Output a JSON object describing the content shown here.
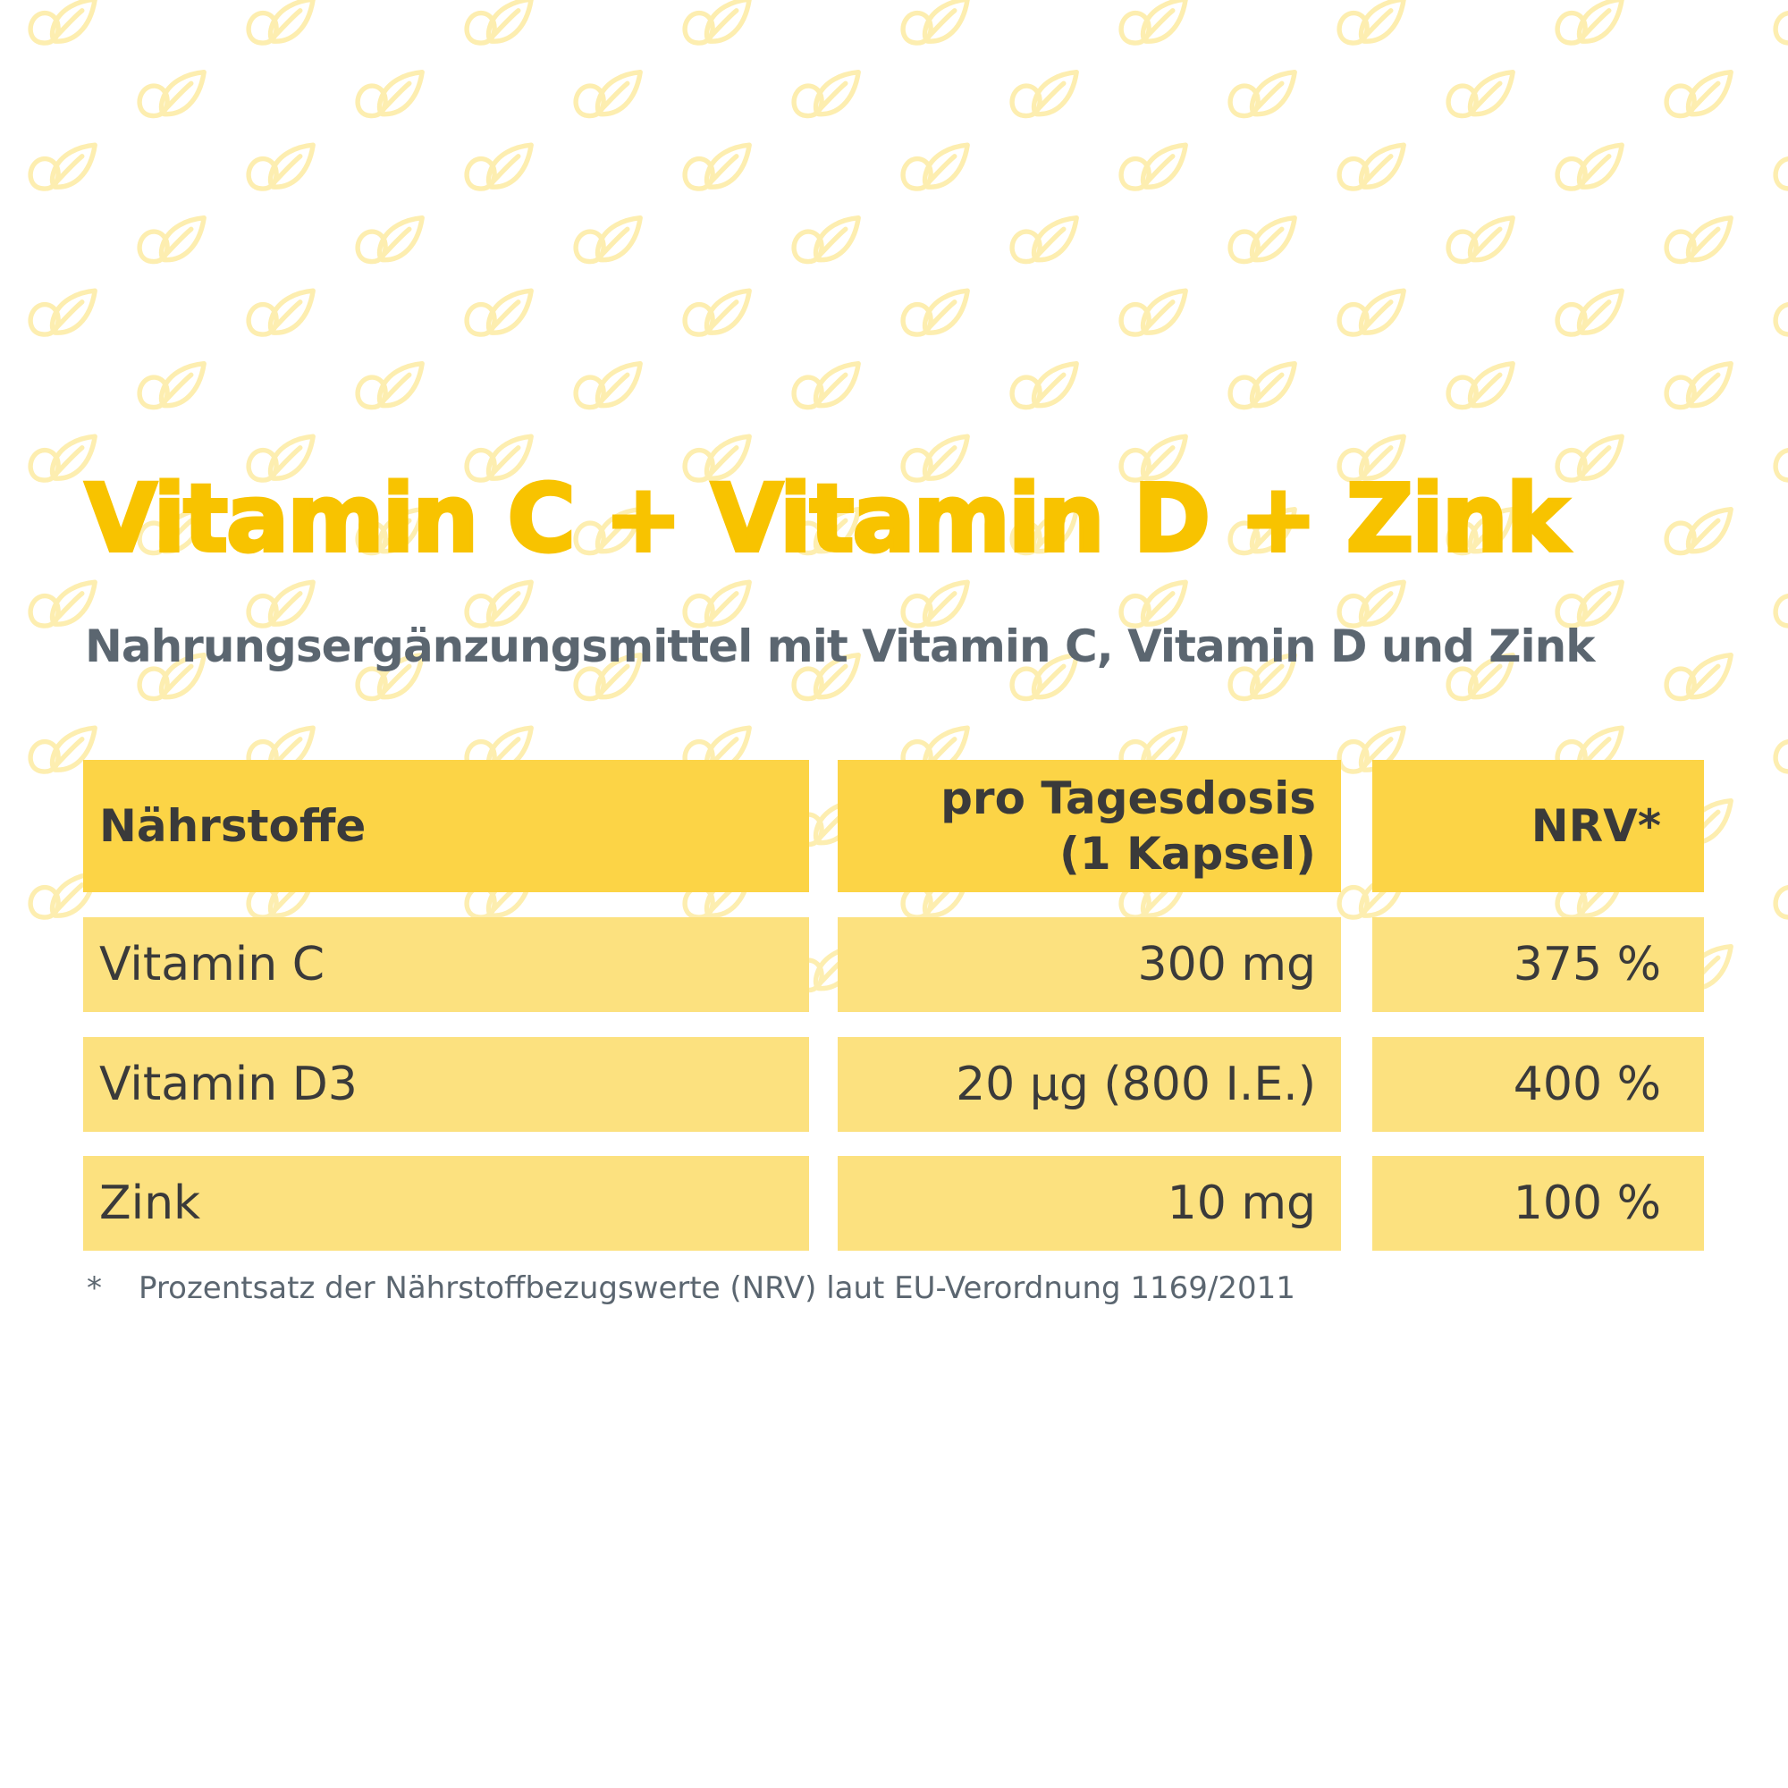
{
  "title": "Vitamin C + Vitamin D + Zink",
  "subtitle": "Nahrungsergänzungsmittel mit Vitamin C, Vitamin D und Zink",
  "table": {
    "headers": {
      "nutrient": "Nährstoffe",
      "dose_line1": "pro Tagesdosis",
      "dose_line2": "(1 Kapsel)",
      "nrv": "NRV*"
    },
    "rows": [
      {
        "nutrient": "Vitamin C",
        "dose": "300 mg",
        "nrv": "375 %"
      },
      {
        "nutrient": "Vitamin D3",
        "dose": "20 µg (800 I.E.)",
        "nrv": "400 %"
      },
      {
        "nutrient": "Zink",
        "dose": "10 mg",
        "nrv": "100 %"
      }
    ]
  },
  "footnote": {
    "mark": "*",
    "text": "Prozentsatz der Nährstoffbezugswerte (NRV) laut EU-Verordnung 1169/2011"
  },
  "colors": {
    "title": "#f8c300",
    "subtitle": "#5b6670",
    "header_bg": "#fcd446",
    "row_bg": "#fce17f",
    "pattern": "#fdeeb0"
  },
  "background_icon": "leaf-icon"
}
